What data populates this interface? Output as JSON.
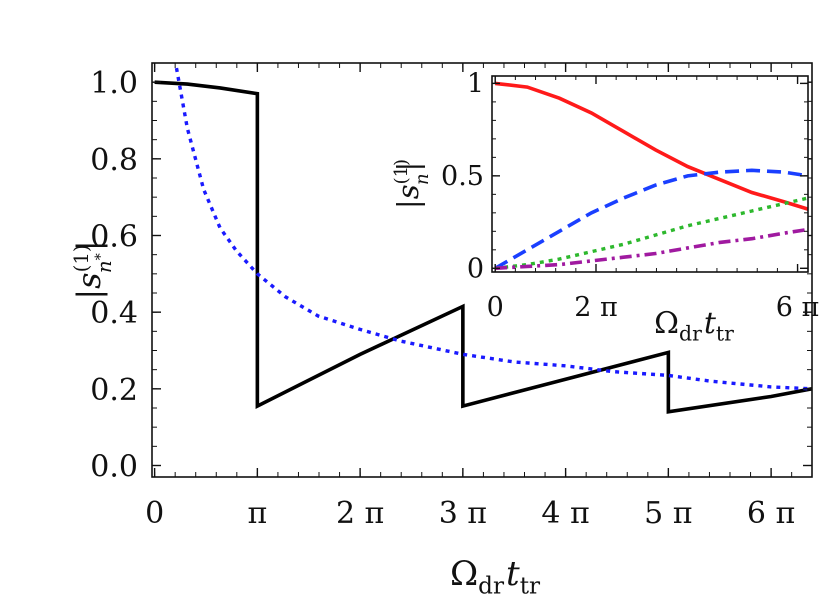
{
  "chart_data": [
    {
      "type": "line",
      "xlabel": "Ω_dr t_tr",
      "ylabel": "|s_{n*}^{(1)}|",
      "xlim": [
        -0.08,
        20.1
      ],
      "ylim": [
        -0.03,
        1.05
      ],
      "x_ticks": [
        {
          "value": 0,
          "label": "0"
        },
        {
          "value": 3.1416,
          "label": "π"
        },
        {
          "value": 6.2832,
          "label": "2 π"
        },
        {
          "value": 9.4248,
          "label": "3 π"
        },
        {
          "value": 12.5664,
          "label": "4 π"
        },
        {
          "value": 15.708,
          "label": "5 π"
        },
        {
          "value": 18.8496,
          "label": "6 π"
        }
      ],
      "y_ticks": [
        {
          "value": 0.0,
          "label": "0.0"
        },
        {
          "value": 0.2,
          "label": "0.2"
        },
        {
          "value": 0.4,
          "label": "0.4"
        },
        {
          "value": 0.6,
          "label": "0.6"
        },
        {
          "value": 0.8,
          "label": "0.8"
        },
        {
          "value": 1.0,
          "label": "1.0"
        }
      ],
      "grid": false,
      "series": [
        {
          "color": "#000000",
          "style": "solid",
          "x": [
            0,
            1.0,
            2.0,
            3.1416,
            3.1416,
            6.2832,
            9.4248,
            9.4248,
            12.5664,
            15.708,
            15.708,
            18.8496,
            20.1
          ],
          "y": [
            1.0,
            0.995,
            0.985,
            0.97,
            0.155,
            0.29,
            0.415,
            0.155,
            0.225,
            0.295,
            0.14,
            0.18,
            0.2
          ]
        },
        {
          "color": "#1a1aff",
          "style": "dotted",
          "x": [
            0.62,
            1.0,
            1.5,
            2.0,
            2.5,
            3.1416,
            4.0,
            5.0,
            6.2832,
            7.5,
            9.4248,
            11.0,
            12.5664,
            14.0,
            15.708,
            17.0,
            18.8496,
            20.1
          ],
          "y": [
            1.06,
            0.88,
            0.72,
            0.62,
            0.56,
            0.5,
            0.44,
            0.39,
            0.355,
            0.325,
            0.29,
            0.27,
            0.26,
            0.245,
            0.235,
            0.22,
            0.205,
            0.2
          ]
        }
      ]
    },
    {
      "type": "line",
      "xlabel": "Ω_dr t_tr",
      "ylabel": "|s_n^{(1)}|",
      "xlim": [
        -0.2,
        19.5
      ],
      "ylim": [
        -0.02,
        1.04
      ],
      "x_ticks": [
        {
          "value": 0,
          "label": "0"
        },
        {
          "value": 6.2832,
          "label": "2 π"
        },
        {
          "value": 18.8496,
          "label": "6 π"
        }
      ],
      "y_ticks": [
        {
          "value": 0,
          "label": "0"
        },
        {
          "value": 0.5,
          "label": "0.5"
        },
        {
          "value": 1,
          "label": "1"
        }
      ],
      "grid": false,
      "series": [
        {
          "color": "#ff1a1a",
          "style": "solid",
          "x": [
            0,
            2,
            4,
            6,
            8,
            10,
            12,
            14,
            16,
            18,
            19.5
          ],
          "y": [
            1.0,
            0.98,
            0.92,
            0.84,
            0.74,
            0.64,
            0.55,
            0.48,
            0.41,
            0.36,
            0.32
          ]
        },
        {
          "color": "#1a3fff",
          "style": "dashed",
          "x": [
            0,
            2,
            4,
            6,
            8,
            10,
            12,
            14,
            16,
            18,
            19.5
          ],
          "y": [
            0.0,
            0.1,
            0.2,
            0.3,
            0.38,
            0.45,
            0.5,
            0.52,
            0.53,
            0.52,
            0.5
          ]
        },
        {
          "color": "#2db82d",
          "style": "dotted",
          "x": [
            0,
            2,
            4,
            6,
            8,
            10,
            12,
            14,
            16,
            18,
            19.5
          ],
          "y": [
            0.0,
            0.02,
            0.05,
            0.09,
            0.13,
            0.18,
            0.23,
            0.27,
            0.31,
            0.35,
            0.38
          ]
        },
        {
          "color": "#a01aa0",
          "style": "dashdot",
          "x": [
            0,
            2,
            4,
            6,
            8,
            10,
            12,
            14,
            16,
            18,
            19.5
          ],
          "y": [
            0.0,
            0.01,
            0.02,
            0.04,
            0.06,
            0.08,
            0.11,
            0.14,
            0.16,
            0.19,
            0.21
          ]
        }
      ]
    }
  ]
}
